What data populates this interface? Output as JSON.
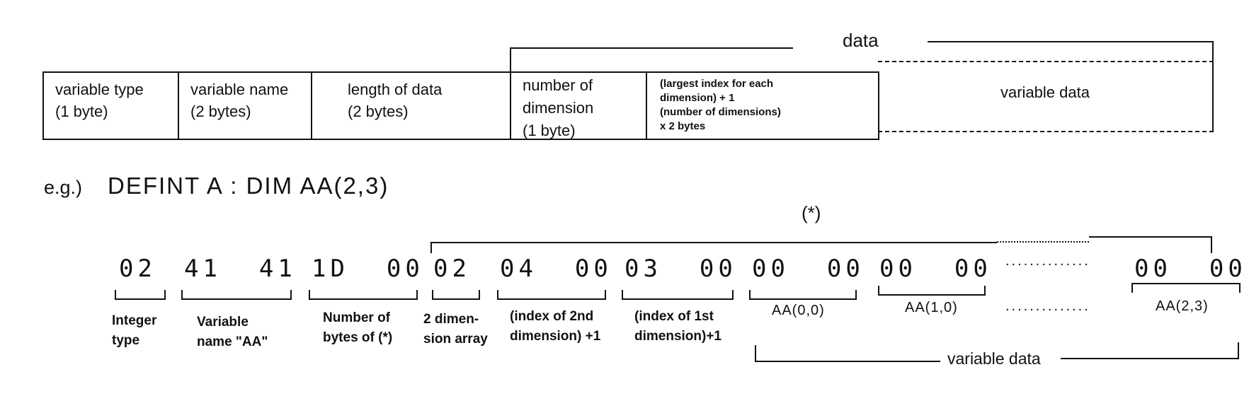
{
  "structure": {
    "data_label": "data",
    "cells": [
      {
        "id": "variable-type",
        "text": "variable type\n(1 byte)"
      },
      {
        "id": "variable-name",
        "text": "variable name\n(2 bytes)"
      },
      {
        "id": "length-of-data",
        "text": "length of data\n(2 bytes)"
      },
      {
        "id": "number-of-dimension",
        "text": "number of\ndimension\n(1 byte)"
      },
      {
        "id": "largest-index",
        "text": "(largest index for each\ndimension) + 1\n(number of dimensions)\nx 2 bytes"
      },
      {
        "id": "variable-data",
        "text": "variable data"
      }
    ]
  },
  "example": {
    "prefix": "e.g.)",
    "code": "DEFINT A : DIM AA(2,3)",
    "star_label": "(*)",
    "bytes": [
      "02",
      "41  41",
      "1D  00",
      "02",
      "04  00",
      "03  00",
      "00  00",
      "00  00",
      "00  00"
    ],
    "ellipsis": "..............",
    "byte_labels": [
      "Integer\ntype",
      "Variable\nname \"AA\"",
      "Number of\nbytes of (*)",
      "2 dimen-\nsion array",
      "(index of 2nd\ndimension) +1",
      "(index of 1st\ndimension)+1"
    ],
    "element_labels": [
      "AA(0,0)",
      "AA(1,0)",
      "AA(2,3)"
    ],
    "variable_data_label": "variable data"
  }
}
